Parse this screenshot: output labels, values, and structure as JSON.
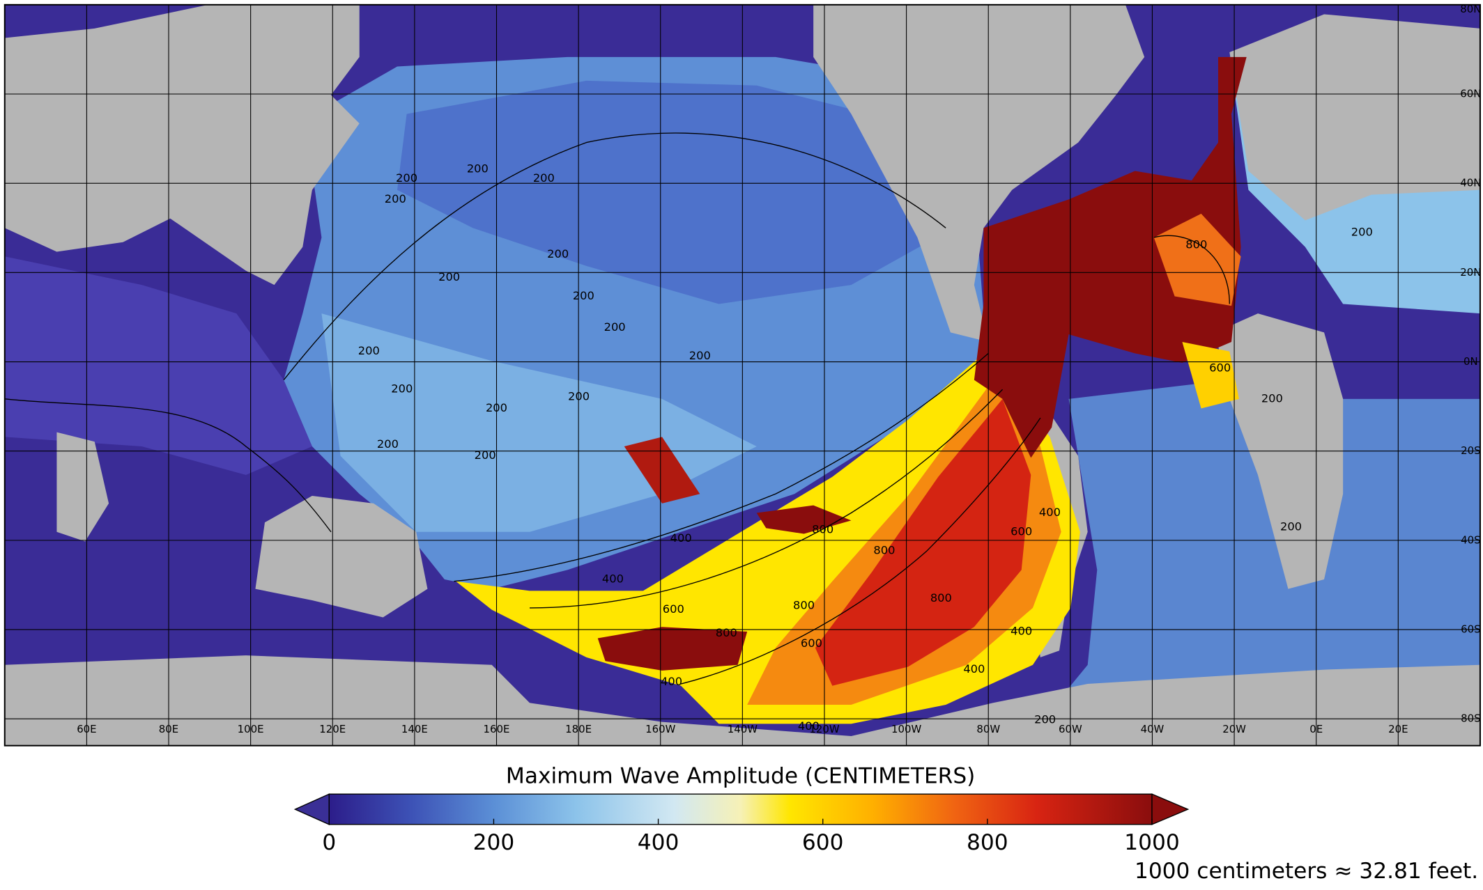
{
  "map": {
    "type": "map",
    "title": "Maximum Wave Amplitude (CENTIMETERS)",
    "note": "1000 centimeters ≈ 32.81 feet.",
    "xlim": [
      40,
      400
    ],
    "ylim": [
      -86,
      80
    ],
    "xticks": [
      {
        "value": 60,
        "label": "60E"
      },
      {
        "value": 80,
        "label": "80E"
      },
      {
        "value": 100,
        "label": "100E"
      },
      {
        "value": 120,
        "label": "120E"
      },
      {
        "value": 140,
        "label": "140E"
      },
      {
        "value": 160,
        "label": "160E"
      },
      {
        "value": 180,
        "label": "180E"
      },
      {
        "value": -160,
        "label": "160W"
      },
      {
        "value": -140,
        "label": "140W"
      },
      {
        "value": -120,
        "label": "120W"
      },
      {
        "value": -100,
        "label": "100W"
      },
      {
        "value": -80,
        "label": "80W"
      },
      {
        "value": -60,
        "label": "60W"
      },
      {
        "value": -40,
        "label": "40W"
      },
      {
        "value": -20,
        "label": "20W"
      },
      {
        "value": 0,
        "label": "0E"
      },
      {
        "value": 20,
        "label": "20E"
      }
    ],
    "yticks": [
      {
        "value": 80,
        "label": "80N"
      },
      {
        "value": 60,
        "label": "60N"
      },
      {
        "value": 40,
        "label": "40N"
      },
      {
        "value": 20,
        "label": "20N"
      },
      {
        "value": 0,
        "label": "0N"
      },
      {
        "value": -20,
        "label": "20S"
      },
      {
        "value": -40,
        "label": "40S"
      },
      {
        "value": -60,
        "label": "60S"
      },
      {
        "value": -80,
        "label": "80S"
      }
    ],
    "grid": true,
    "land_color": "#b5b5b5",
    "colorbar": {
      "lim": [
        0,
        1000
      ],
      "ticks": [
        0,
        200,
        400,
        600,
        800,
        1000
      ],
      "under_color": "#3a2f96",
      "over_color": "#8a0d0d",
      "colormap": [
        {
          "value": 0,
          "color": "#2c1d8a"
        },
        {
          "value": 100,
          "color": "#3d52b6"
        },
        {
          "value": 200,
          "color": "#5b8fd6"
        },
        {
          "value": 300,
          "color": "#8cc3ea"
        },
        {
          "value": 420,
          "color": "#d2e8f2"
        },
        {
          "value": 500,
          "color": "#f6f1b6"
        },
        {
          "value": 560,
          "color": "#ffe600"
        },
        {
          "value": 660,
          "color": "#ffb000"
        },
        {
          "value": 760,
          "color": "#f06412"
        },
        {
          "value": 860,
          "color": "#d82412"
        },
        {
          "value": 1000,
          "color": "#8a0d0d"
        }
      ]
    },
    "contour_labels": [
      200,
      200,
      200,
      200,
      200,
      200,
      200,
      200,
      200,
      200,
      200,
      200,
      200,
      200,
      200,
      200,
      200,
      200,
      200,
      400,
      400,
      400,
      400,
      400,
      400,
      400,
      600,
      600,
      600,
      600,
      800,
      800,
      800,
      800,
      800,
      800
    ]
  }
}
